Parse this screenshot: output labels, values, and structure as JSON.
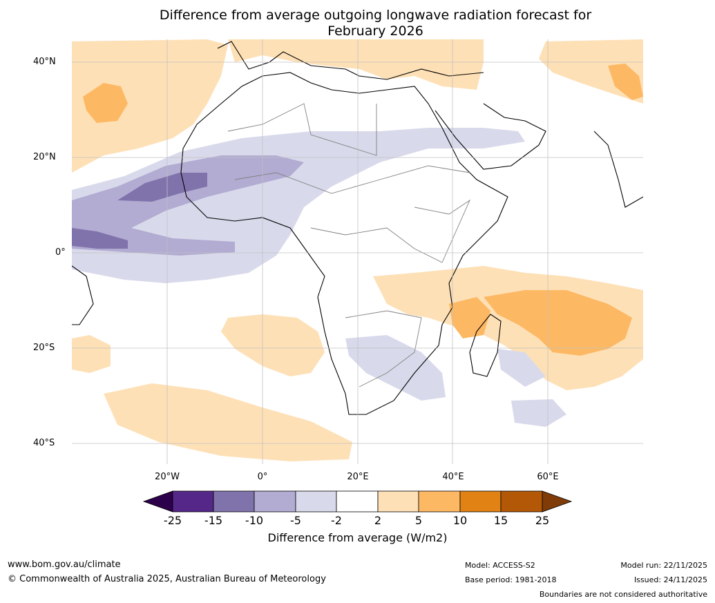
{
  "title_line1": "Difference from average outgoing longwave radiation forecast for",
  "title_line2": "February 2026",
  "lat_labels": [
    "40°N",
    "20°N",
    "0°",
    "20°S",
    "40°S"
  ],
  "lon_labels": [
    "20°W",
    "0°",
    "20°E",
    "40°E",
    "60°E"
  ],
  "colorbar": {
    "title": "Difference from average (W/m2)",
    "ticks": [
      "-25",
      "-15",
      "-10",
      "-5",
      "-2",
      "2",
      "5",
      "10",
      "15",
      "25"
    ],
    "colors": {
      "lt_neg25": "#2d004b",
      "neg25_15": "#542788",
      "neg15_10": "#8073ac",
      "neg10_5": "#b2abd2",
      "neg5_2": "#d8daeb",
      "neutral": "#ffffff",
      "pos2_5": "#fee0b6",
      "pos5_10": "#fdb863",
      "pos10_15": "#e08214",
      "pos15_25": "#b35806",
      "gt_25": "#7f3b08"
    }
  },
  "footer": {
    "website": "www.bom.gov.au/climate",
    "copyright": "© Commonwealth of Australia 2025, Australian Bureau of Meteorology",
    "model": "Model: ACCESS-S2",
    "base_period": "Base period: 1981-2018",
    "model_run": "Model run: 22/11/2025",
    "issued": "Issued: 24/11/2025",
    "disclaimer": "Boundaries are not considered authoritative"
  }
}
